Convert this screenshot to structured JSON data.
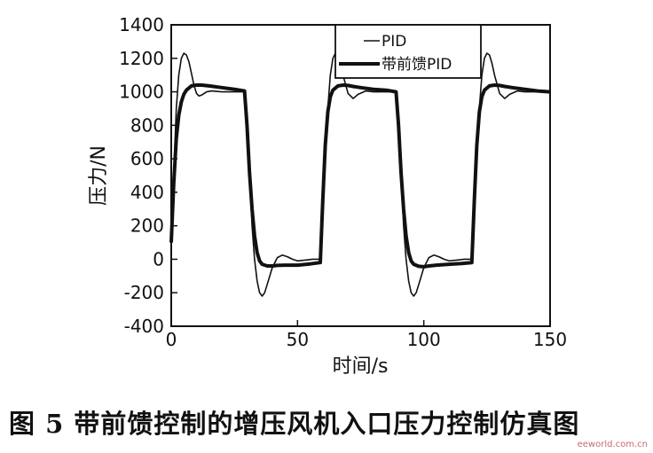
{
  "chart_data": {
    "type": "line",
    "xlabel": "时间/s",
    "ylabel": "压力/N",
    "xlim": [
      0,
      150
    ],
    "ylim": [
      -400,
      1400
    ],
    "xticks": [
      0,
      50,
      100,
      150
    ],
    "yticks": [
      -400,
      -200,
      0,
      200,
      400,
      600,
      800,
      1000,
      1200,
      1400
    ],
    "grid": false,
    "legend_position": "top-right",
    "series": [
      {
        "name": "PID",
        "style": "thin",
        "color": "#111111",
        "x": [
          0,
          1,
          2,
          3,
          4,
          5,
          6,
          7,
          8,
          9,
          10,
          11,
          12,
          14,
          16,
          20,
          25,
          29,
          30,
          31,
          32,
          33,
          34,
          35,
          36,
          37,
          38,
          40,
          42,
          44,
          46,
          48,
          50,
          53,
          56,
          59,
          60,
          61,
          62,
          63,
          64,
          65,
          66,
          67,
          68,
          70,
          72,
          74,
          77,
          80,
          85,
          89,
          90,
          91,
          92,
          93,
          94,
          95,
          96,
          97,
          98,
          100,
          102,
          104,
          106,
          108,
          110,
          113,
          116,
          119,
          120,
          121,
          122,
          123,
          124,
          125,
          126,
          127,
          128,
          130,
          132,
          134,
          137,
          140,
          145,
          150
        ],
        "values": [
          100,
          500,
          900,
          1100,
          1200,
          1230,
          1220,
          1180,
          1110,
          1040,
          990,
          975,
          980,
          1000,
          1005,
          1000,
          1000,
          1000,
          800,
          500,
          200,
          0,
          -130,
          -200,
          -220,
          -200,
          -150,
          -50,
          10,
          25,
          15,
          0,
          -10,
          -5,
          0,
          0,
          300,
          600,
          900,
          1100,
          1200,
          1230,
          1220,
          1170,
          1100,
          990,
          960,
          985,
          1005,
          1000,
          1000,
          1000,
          800,
          500,
          200,
          0,
          -130,
          -200,
          -220,
          -200,
          -150,
          -50,
          10,
          25,
          15,
          0,
          -10,
          -5,
          0,
          0,
          300,
          600,
          900,
          1100,
          1200,
          1230,
          1220,
          1170,
          1100,
          990,
          960,
          985,
          1005,
          1000,
          1000,
          1000
        ]
      },
      {
        "name": "带前馈PID",
        "style": "thick",
        "color": "#111111",
        "x": [
          0,
          1,
          2,
          3,
          4,
          5,
          6,
          8,
          10,
          12,
          15,
          20,
          25,
          29,
          30,
          31,
          32,
          33,
          34,
          35,
          36,
          38,
          40,
          42,
          45,
          50,
          55,
          59,
          60,
          61,
          62,
          63,
          64,
          66,
          68,
          70,
          72,
          75,
          80,
          85,
          89,
          90,
          91,
          92,
          93,
          94,
          95,
          96,
          98,
          100,
          102,
          105,
          110,
          115,
          119,
          120,
          121,
          122,
          123,
          124,
          126,
          128,
          130,
          132,
          135,
          140,
          145,
          150
        ],
        "values": [
          100,
          450,
          720,
          860,
          940,
          985,
          1010,
          1035,
          1040,
          1040,
          1035,
          1025,
          1015,
          1005,
          800,
          520,
          300,
          140,
          40,
          -10,
          -30,
          -40,
          -40,
          -37,
          -35,
          -35,
          -28,
          -20,
          350,
          680,
          880,
          970,
          1010,
          1035,
          1040,
          1038,
          1032,
          1025,
          1015,
          1010,
          1000,
          800,
          520,
          300,
          140,
          40,
          -10,
          -30,
          -42,
          -45,
          -40,
          -35,
          -30,
          -25,
          -20,
          350,
          680,
          880,
          970,
          1010,
          1035,
          1040,
          1038,
          1032,
          1025,
          1015,
          1005,
          1000
        ]
      }
    ]
  },
  "caption": "图 5   带前馈控制的增压风机入口压力控制仿真图",
  "watermark": "eeworld.com.cn"
}
